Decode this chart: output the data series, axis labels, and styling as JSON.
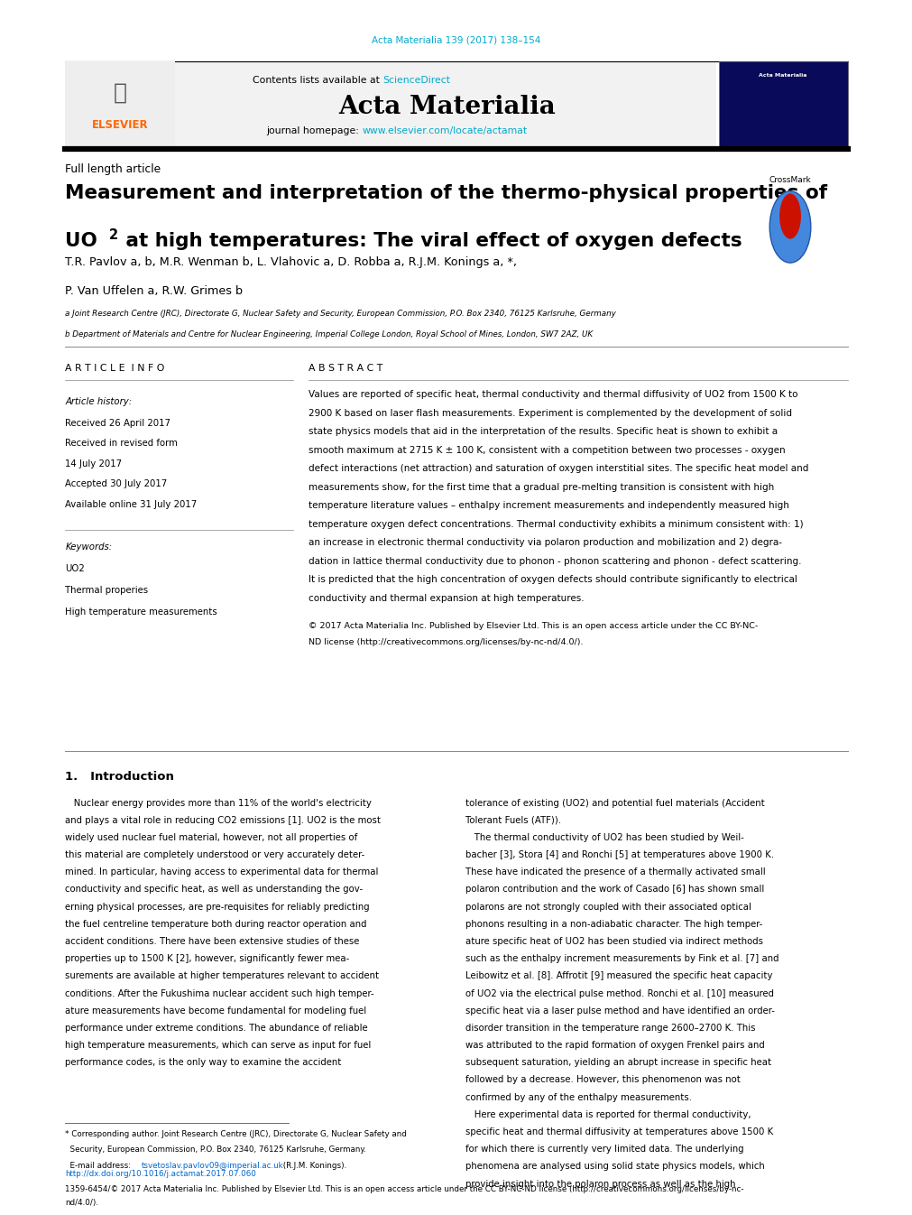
{
  "page_width": 9.92,
  "page_height": 13.23,
  "bg_color": "#ffffff",
  "journal_ref": "Acta Materialia 139 (2017) 138–154",
  "journal_ref_color": "#00AACC",
  "light_gray_bg": "#f2f2f2",
  "contents_text": "Contents lists available at ",
  "sciencedirect_text": "ScienceDirect",
  "sciencedirect_color": "#00AACC",
  "journal_name": "Acta Materialia",
  "homepage_label": "journal homepage: ",
  "homepage_url": "www.elsevier.com/locate/actamat",
  "homepage_url_color": "#00AACC",
  "article_type": "Full length article",
  "title_line1": "Measurement and interpretation of the thermo-physical properties of",
  "title_line2_post": " at high temperatures: The viral effect of oxygen defects",
  "authors_line1": "T.R. Pavlov a, b, M.R. Wenman b, L. Vlahovic a, D. Robba a, R.J.M. Konings a, *,",
  "authors_line2": "P. Van Uffelen a, R.W. Grimes b",
  "affil_a": "a Joint Research Centre (JRC), Directorate G, Nuclear Safety and Security, European Commission, P.O. Box 2340, 76125 Karlsruhe, Germany",
  "affil_b": "b Department of Materials and Centre for Nuclear Engineering, Imperial College London, Royal School of Mines, London, SW7 2AZ, UK",
  "section_article_info": "A R T I C L E  I N F O",
  "section_abstract": "A B S T R A C T",
  "history_label": "Article history:",
  "received1": "Received 26 April 2017",
  "received2": "Received in revised form",
  "received2b": "14 July 2017",
  "accepted": "Accepted 30 July 2017",
  "online": "Available online 31 July 2017",
  "keywords_label": "Keywords:",
  "kw1": "UO2",
  "kw2": "Thermal properies",
  "kw3": "High temperature measurements",
  "abstract_text": "Values are reported of specific heat, thermal conductivity and thermal diffusivity of UO2 from 1500 K to\n2900 K based on laser flash measurements. Experiment is complemented by the development of solid\nstate physics models that aid in the interpretation of the results. Specific heat is shown to exhibit a\nsmooth maximum at 2715 K ± 100 K, consistent with a competition between two processes - oxygen\ndefect interactions (net attraction) and saturation of oxygen interstitial sites. The specific heat model and\nmeasurements show, for the first time that a gradual pre-melting transition is consistent with high\ntemperature literature values – enthalpy increment measurements and independently measured high\ntemperature oxygen defect concentrations. Thermal conductivity exhibits a minimum consistent with: 1)\nan increase in electronic thermal conductivity via polaron production and mobilization and 2) degra-\ndation in lattice thermal conductivity due to phonon - phonon scattering and phonon - defect scattering.\nIt is predicted that the high concentration of oxygen defects should contribute significantly to electrical\nconductivity and thermal expansion at high temperatures.",
  "copyright_text": "© 2017 Acta Materialia Inc. Published by Elsevier Ltd. This is an open access article under the CC BY-NC-\nND license (http://creativecommons.org/licenses/by-nc-nd/4.0/).",
  "intro_title": "1.   Introduction",
  "intro_col1_lines": [
    "   Nuclear energy provides more than 11% of the world's electricity",
    "and plays a vital role in reducing CO2 emissions [1]. UO2 is the most",
    "widely used nuclear fuel material, however, not all properties of",
    "this material are completely understood or very accurately deter-",
    "mined. In particular, having access to experimental data for thermal",
    "conductivity and specific heat, as well as understanding the gov-",
    "erning physical processes, are pre-requisites for reliably predicting",
    "the fuel centreline temperature both during reactor operation and",
    "accident conditions. There have been extensive studies of these",
    "properties up to 1500 K [2], however, significantly fewer mea-",
    "surements are available at higher temperatures relevant to accident",
    "conditions. After the Fukushima nuclear accident such high temper-",
    "ature measurements have become fundamental for modeling fuel",
    "performance under extreme conditions. The abundance of reliable",
    "high temperature measurements, which can serve as input for fuel",
    "performance codes, is the only way to examine the accident"
  ],
  "intro_col2_lines": [
    "tolerance of existing (UO2) and potential fuel materials (Accident",
    "Tolerant Fuels (ATF)).",
    "   The thermal conductivity of UO2 has been studied by Weil-",
    "bacher [3], Stora [4] and Ronchi [5] at temperatures above 1900 K.",
    "These have indicated the presence of a thermally activated small",
    "polaron contribution and the work of Casado [6] has shown small",
    "polarons are not strongly coupled with their associated optical",
    "phonons resulting in a non-adiabatic character. The high temper-",
    "ature specific heat of UO2 has been studied via indirect methods",
    "such as the enthalpy increment measurements by Fink et al. [7] and",
    "Leibowitz et al. [8]. Affrotit [9] measured the specific heat capacity",
    "of UO2 via the electrical pulse method. Ronchi et al. [10] measured",
    "specific heat via a laser pulse method and have identified an order-",
    "disorder transition in the temperature range 2600–2700 K. This",
    "was attributed to the rapid formation of oxygen Frenkel pairs and",
    "subsequent saturation, yielding an abrupt increase in specific heat",
    "followed by a decrease. However, this phenomenon was not",
    "confirmed by any of the enthalpy measurements.",
    "   Here experimental data is reported for thermal conductivity,",
    "specific heat and thermal diffusivity at temperatures above 1500 K",
    "for which there is currently very limited data. The underlying",
    "phenomena are analysed using solid state physics models, which",
    "provide insight into the polaron process as well as the high"
  ],
  "footnote_star": "* Corresponding author. Joint Research Centre (JRC), Directorate G, Nuclear Safety and",
  "footnote_star2": "  Security, European Commission, P.O. Box 2340, 76125 Karlsruhe, Germany.",
  "footnote_email_label": "  E-mail address: ",
  "footnote_email": "tsvetoslav.pavlov09@imperial.ac.uk",
  "footnote_email_rest": " (R.J.M. Konings).",
  "doi_line": "http://dx.doi.org/10.1016/j.actamat.2017.07.060",
  "issn_line": "1359-6454/© 2017 Acta Materialia Inc. Published by Elsevier Ltd. This is an open access article under the CC BY-NC-ND license (http://creativecommons.org/licenses/by-nc-",
  "issn_line2": "nd/4.0/).",
  "black": "#000000",
  "orange_color": "#FF6600",
  "blue_link": "#0066CC",
  "red_link": "#CC0000"
}
